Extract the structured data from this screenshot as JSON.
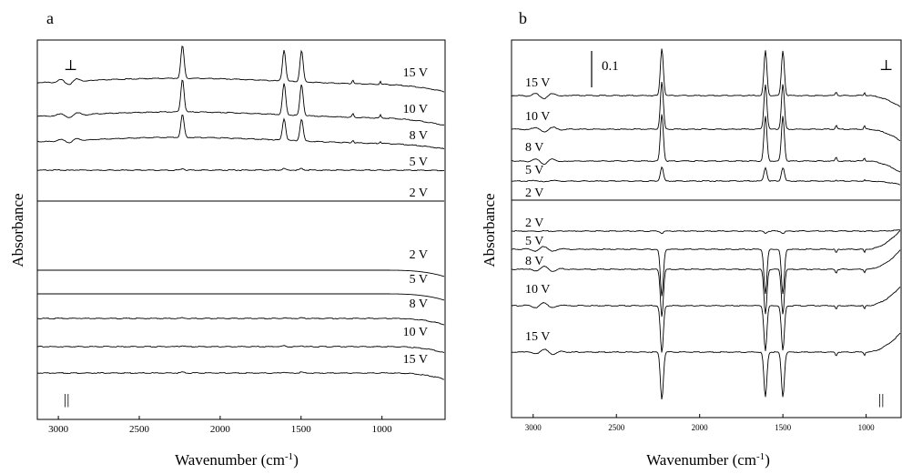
{
  "chart_data": [
    {
      "panel": "a",
      "type": "line",
      "xlabel": "Wavenumber (cm-1)",
      "xlabel_base": "Wavenumber (cm",
      "xlabel_sup": "-1",
      "xlabel_close": ")",
      "ylabel": "Absorbance",
      "xlim": [
        3130,
        610
      ],
      "x_direction": "reversed",
      "x_ticks": [
        "3000",
        "2500",
        "2000",
        "1500",
        "1000"
      ],
      "x_tick_values": [
        3000,
        2500,
        2000,
        1500,
        1000
      ],
      "grid": false,
      "legend": "none",
      "polarization_labels": {
        "top": "⊥",
        "bottom": "||"
      },
      "peaks_cm-1": [
        2233,
        1605,
        1497
      ],
      "series": [
        {
          "label": "15 V",
          "group": "top",
          "intensity": 1.0
        },
        {
          "label": "10 V",
          "group": "top",
          "intensity": 1.0
        },
        {
          "label": "8 V",
          "group": "top",
          "intensity": 0.7
        },
        {
          "label": "5 V",
          "group": "top",
          "intensity": 0.05
        },
        {
          "label": "2 V",
          "group": "top",
          "intensity": 0.0
        },
        {
          "label": "2 V",
          "group": "bottom",
          "intensity": 0.0
        },
        {
          "label": "5 V",
          "group": "bottom",
          "intensity": 0.0
        },
        {
          "label": "8 V",
          "group": "bottom",
          "intensity": 0.02
        },
        {
          "label": "10 V",
          "group": "bottom",
          "intensity": 0.03
        },
        {
          "label": "15 V",
          "group": "bottom",
          "intensity": 0.03
        }
      ]
    },
    {
      "panel": "b",
      "type": "line",
      "xlabel": "Wavenumber (cm-1)",
      "xlabel_base": "Wavenumber (cm",
      "xlabel_sup": "-1",
      "xlabel_close": ")",
      "ylabel": "Absorbance",
      "xlim": [
        3130,
        790
      ],
      "x_direction": "reversed",
      "x_ticks": [
        "3000",
        "2500",
        "2000",
        "1500",
        "1000"
      ],
      "x_tick_values": [
        3000,
        2500,
        2000,
        1500,
        1000
      ],
      "grid": false,
      "legend": "none",
      "scale_bar": "0.1",
      "polarization_labels": {
        "top": "⊥",
        "bottom": "||"
      },
      "peaks_cm-1": [
        2227,
        1605,
        1500
      ],
      "series": [
        {
          "label": "15 V",
          "group": "top",
          "intensity": 1.0
        },
        {
          "label": "10 V",
          "group": "top",
          "intensity": 1.0
        },
        {
          "label": "8 V",
          "group": "top",
          "intensity": 1.0
        },
        {
          "label": "5 V",
          "group": "top",
          "intensity": 0.3
        },
        {
          "label": "2 V",
          "group": "top",
          "intensity": 0.0
        },
        {
          "label": "2 V",
          "group": "bottom",
          "intensity": -0.05
        },
        {
          "label": "5 V",
          "group": "bottom",
          "intensity": -1.0
        },
        {
          "label": "8 V",
          "group": "bottom",
          "intensity": -1.0
        },
        {
          "label": "10 V",
          "group": "bottom",
          "intensity": -1.0
        },
        {
          "label": "15 V",
          "group": "bottom",
          "intensity": -1.0
        }
      ]
    }
  ]
}
